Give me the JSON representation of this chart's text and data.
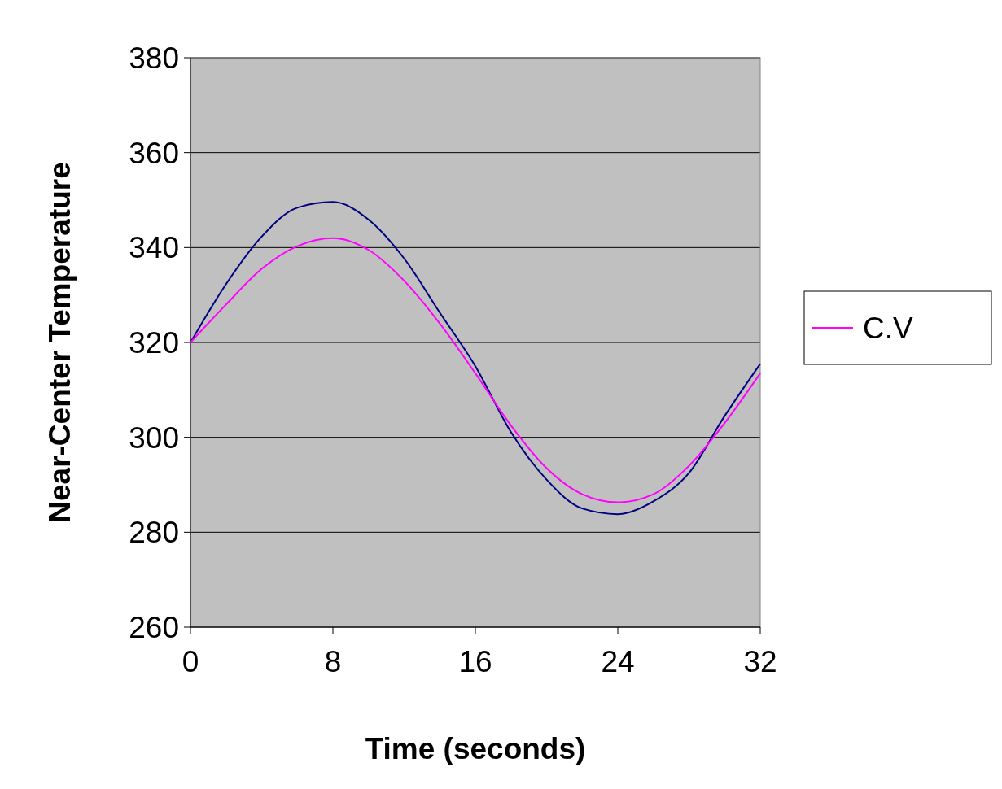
{
  "chart_data": {
    "type": "line",
    "xlabel": "Time (seconds)",
    "ylabel": "Near-Center Temperature",
    "x": [
      0,
      2,
      4,
      6,
      8,
      10,
      12,
      14,
      16,
      18,
      20,
      22,
      24,
      26,
      28,
      30,
      32
    ],
    "series": [
      {
        "color": "#000080",
        "values": [
          320,
          332.3,
          342.3,
          348.4,
          349.6,
          345.9,
          337.7,
          326.3,
          315,
          301.1,
          291.1,
          285,
          283.8,
          286.5,
          292.5,
          304.5,
          315.5
        ]
      },
      {
        "name": "C.V",
        "color": "#ff00ff",
        "values": [
          320,
          328,
          335.5,
          340.3,
          342,
          339.5,
          333,
          324,
          313.5,
          302.5,
          293.5,
          288,
          286.3,
          288,
          294,
          303,
          313.5
        ]
      }
    ],
    "xlim": [
      0,
      32
    ],
    "xticks": [
      0,
      8,
      16,
      24,
      32
    ],
    "ylim": [
      260,
      380
    ],
    "yticks": [
      260,
      280,
      300,
      320,
      340,
      360,
      380
    ],
    "grid": "y",
    "legend": "right",
    "marker": "none",
    "line_style": "solid"
  }
}
